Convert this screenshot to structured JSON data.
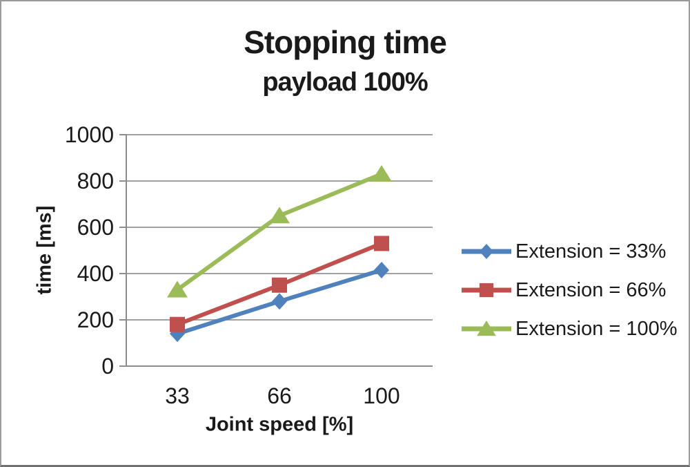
{
  "chart_data": {
    "type": "line",
    "title": "Stopping time",
    "subtitle": "payload 100%",
    "xlabel": "Joint speed [%]",
    "ylabel": "time [ms]",
    "categories": [
      "33",
      "66",
      "100"
    ],
    "x_values": [
      33,
      66,
      100
    ],
    "series": [
      {
        "name": "Extension = 33%",
        "marker": "diamond",
        "color": "#4f81bd",
        "values": [
          140,
          280,
          415
        ]
      },
      {
        "name": "Extension = 66%",
        "marker": "square",
        "color": "#c0504d",
        "values": [
          180,
          350,
          530
        ]
      },
      {
        "name": "Extension = 100%",
        "marker": "triangle",
        "color": "#9bbb59",
        "values": [
          330,
          650,
          830
        ]
      }
    ],
    "ylim": [
      0,
      1000
    ],
    "yticks": [
      0,
      200,
      400,
      600,
      800,
      1000
    ],
    "grid": true,
    "gridline_color": "#a0a0a0",
    "axis_color": "#8c8c8c",
    "text_color": "#1a1a1a",
    "background_color": "#ffffff",
    "legend_position": "right"
  }
}
